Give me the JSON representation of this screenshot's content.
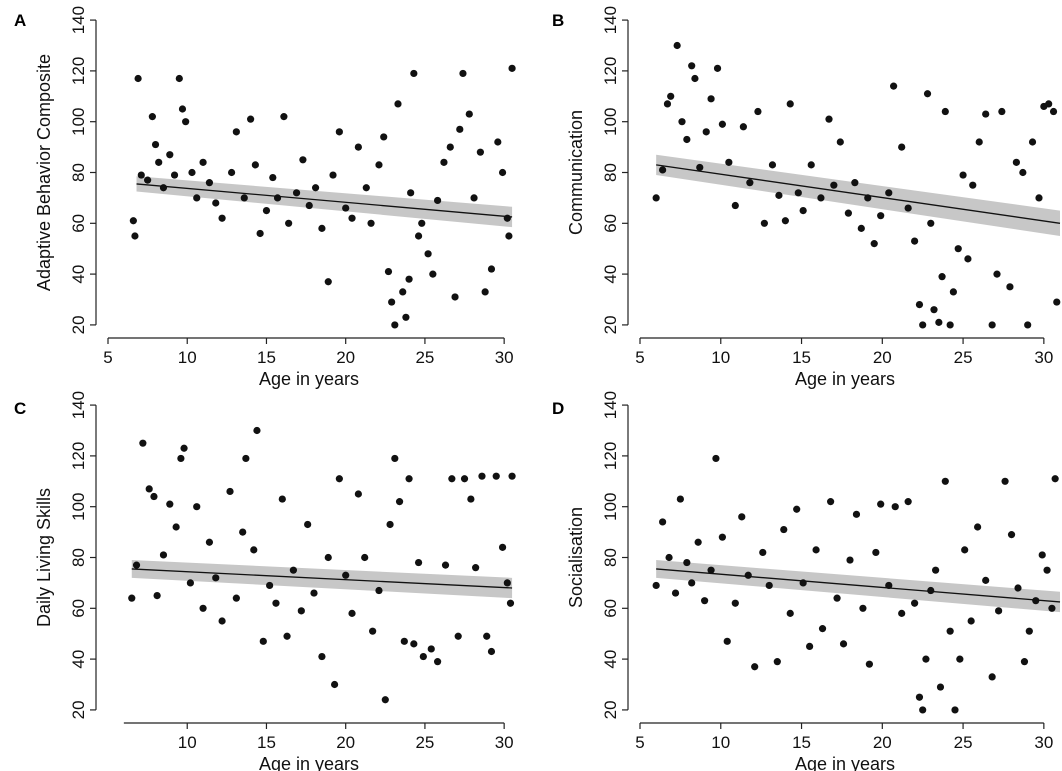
{
  "chart_data": [
    {
      "type": "scatter",
      "panel_letter": "A",
      "xlabel": "Age in years",
      "ylabel": "Adaptive Behavior Composite",
      "xlim": [
        5,
        31
      ],
      "ylim": [
        18,
        142
      ],
      "x_ticks": [
        5,
        10,
        15,
        20,
        25,
        30
      ],
      "y_ticks": [
        20,
        40,
        60,
        80,
        100,
        120,
        140
      ],
      "fit": {
        "x": [
          6.8,
          30.5
        ],
        "y": [
          75.5,
          62.5
        ],
        "ci_halfwidth_start": 3,
        "ci_halfwidth_end": 4
      },
      "points": [
        [
          6.9,
          117
        ],
        [
          7.1,
          79
        ],
        [
          6.7,
          55
        ],
        [
          6.6,
          61
        ],
        [
          7.5,
          77
        ],
        [
          7.8,
          102
        ],
        [
          8,
          91
        ],
        [
          8.2,
          84
        ],
        [
          8.5,
          74
        ],
        [
          8.9,
          87
        ],
        [
          9.2,
          79
        ],
        [
          9.5,
          117
        ],
        [
          9.7,
          105
        ],
        [
          9.9,
          100
        ],
        [
          10.3,
          80
        ],
        [
          10.6,
          70
        ],
        [
          11,
          84
        ],
        [
          11.4,
          76
        ],
        [
          11.8,
          68
        ],
        [
          12.2,
          62
        ],
        [
          12.8,
          80
        ],
        [
          13.1,
          96
        ],
        [
          13.6,
          70
        ],
        [
          14,
          101
        ],
        [
          14.3,
          83
        ],
        [
          14.6,
          56
        ],
        [
          15,
          65
        ],
        [
          15.4,
          78
        ],
        [
          15.7,
          70
        ],
        [
          16.1,
          102
        ],
        [
          16.4,
          60
        ],
        [
          16.9,
          72
        ],
        [
          17.3,
          85
        ],
        [
          17.7,
          67
        ],
        [
          18.1,
          74
        ],
        [
          18.5,
          58
        ],
        [
          18.9,
          37
        ],
        [
          19.2,
          79
        ],
        [
          19.6,
          96
        ],
        [
          20,
          66
        ],
        [
          20.4,
          62
        ],
        [
          20.8,
          90
        ],
        [
          21.3,
          74
        ],
        [
          21.6,
          60
        ],
        [
          22.1,
          83
        ],
        [
          22.4,
          94
        ],
        [
          22.7,
          41
        ],
        [
          22.9,
          29
        ],
        [
          23.1,
          20
        ],
        [
          23.3,
          107
        ],
        [
          23.6,
          33
        ],
        [
          23.8,
          23
        ],
        [
          24,
          38
        ],
        [
          24.1,
          72
        ],
        [
          24.3,
          119
        ],
        [
          24.6,
          55
        ],
        [
          24.8,
          60
        ],
        [
          25.2,
          48
        ],
        [
          25.5,
          40
        ],
        [
          25.8,
          69
        ],
        [
          26.2,
          84
        ],
        [
          26.6,
          90
        ],
        [
          26.9,
          31
        ],
        [
          27.2,
          97
        ],
        [
          27.4,
          119
        ],
        [
          27.8,
          103
        ],
        [
          28.1,
          70
        ],
        [
          28.5,
          88
        ],
        [
          28.8,
          33
        ],
        [
          29.2,
          42
        ],
        [
          29.6,
          92
        ],
        [
          29.9,
          80
        ],
        [
          30.2,
          62
        ],
        [
          30.3,
          55
        ],
        [
          30.5,
          121
        ]
      ]
    },
    {
      "type": "scatter",
      "panel_letter": "B",
      "xlabel": "Age in years",
      "ylabel": "Communication",
      "xlim": [
        5,
        31
      ],
      "ylim": [
        18,
        142
      ],
      "x_ticks": [
        5,
        10,
        15,
        20,
        25,
        30
      ],
      "y_ticks": [
        20,
        40,
        60,
        80,
        100,
        120,
        140
      ],
      "fit": {
        "x": [
          6,
          31
        ],
        "y": [
          83,
          60
        ],
        "ci_halfwidth_start": 4,
        "ci_halfwidth_end": 5
      },
      "points": [
        [
          6,
          70
        ],
        [
          6.4,
          81
        ],
        [
          6.7,
          107
        ],
        [
          6.9,
          110
        ],
        [
          7.3,
          130
        ],
        [
          7.6,
          100
        ],
        [
          7.9,
          93
        ],
        [
          8.2,
          122
        ],
        [
          8.4,
          117
        ],
        [
          8.7,
          82
        ],
        [
          9.1,
          96
        ],
        [
          9.4,
          109
        ],
        [
          9.8,
          121
        ],
        [
          10.1,
          99
        ],
        [
          10.5,
          84
        ],
        [
          10.9,
          67
        ],
        [
          11.4,
          98
        ],
        [
          11.8,
          76
        ],
        [
          12.3,
          104
        ],
        [
          12.7,
          60
        ],
        [
          13.2,
          83
        ],
        [
          13.6,
          71
        ],
        [
          14,
          61
        ],
        [
          14.3,
          107
        ],
        [
          14.8,
          72
        ],
        [
          15.1,
          65
        ],
        [
          15.6,
          83
        ],
        [
          16.2,
          70
        ],
        [
          16.7,
          101
        ],
        [
          17,
          75
        ],
        [
          17.4,
          92
        ],
        [
          17.9,
          64
        ],
        [
          18.3,
          76
        ],
        [
          18.7,
          58
        ],
        [
          19.1,
          70
        ],
        [
          19.5,
          52
        ],
        [
          19.9,
          63
        ],
        [
          20.4,
          72
        ],
        [
          20.7,
          114
        ],
        [
          21.2,
          90
        ],
        [
          21.6,
          66
        ],
        [
          22,
          53
        ],
        [
          22.3,
          28
        ],
        [
          22.5,
          20
        ],
        [
          22.8,
          111
        ],
        [
          23,
          60
        ],
        [
          23.2,
          26
        ],
        [
          23.5,
          21
        ],
        [
          23.7,
          39
        ],
        [
          23.9,
          104
        ],
        [
          24.2,
          20
        ],
        [
          24.4,
          33
        ],
        [
          24.7,
          50
        ],
        [
          25,
          79
        ],
        [
          25.3,
          46
        ],
        [
          25.6,
          75
        ],
        [
          26,
          92
        ],
        [
          26.4,
          103
        ],
        [
          26.8,
          20
        ],
        [
          27.1,
          40
        ],
        [
          27.4,
          104
        ],
        [
          27.9,
          35
        ],
        [
          28.3,
          84
        ],
        [
          28.7,
          80
        ],
        [
          29,
          20
        ],
        [
          29.3,
          92
        ],
        [
          29.7,
          70
        ],
        [
          30,
          106
        ],
        [
          30.3,
          107
        ],
        [
          30.6,
          104
        ],
        [
          30.8,
          29
        ]
      ]
    },
    {
      "type": "scatter",
      "panel_letter": "C",
      "xlabel": "Age in years",
      "ylabel": "Daily Living Skills",
      "xlim": [
        5,
        31
      ],
      "ylim": [
        18,
        142
      ],
      "x_ticks": [
        10,
        15,
        20,
        25,
        30
      ],
      "y_ticks": [
        20,
        40,
        60,
        80,
        100,
        120,
        140
      ],
      "fit": {
        "x": [
          6.5,
          30.5
        ],
        "y": [
          75.5,
          68
        ],
        "ci_halfwidth_start": 3.5,
        "ci_halfwidth_end": 4
      },
      "points": [
        [
          6.5,
          64
        ],
        [
          6.8,
          77
        ],
        [
          7.2,
          125
        ],
        [
          7.6,
          107
        ],
        [
          7.9,
          104
        ],
        [
          8.1,
          65
        ],
        [
          8.5,
          81
        ],
        [
          8.9,
          101
        ],
        [
          9.3,
          92
        ],
        [
          9.6,
          119
        ],
        [
          9.8,
          123
        ],
        [
          10.2,
          70
        ],
        [
          10.6,
          100
        ],
        [
          11,
          60
        ],
        [
          11.4,
          86
        ],
        [
          11.8,
          72
        ],
        [
          12.2,
          55
        ],
        [
          12.7,
          106
        ],
        [
          13.1,
          64
        ],
        [
          13.5,
          90
        ],
        [
          13.7,
          119
        ],
        [
          14.2,
          83
        ],
        [
          14.4,
          130
        ],
        [
          14.8,
          47
        ],
        [
          15.2,
          69
        ],
        [
          15.6,
          62
        ],
        [
          16,
          103
        ],
        [
          16.3,
          49
        ],
        [
          16.7,
          75
        ],
        [
          17.2,
          59
        ],
        [
          17.6,
          93
        ],
        [
          18,
          66
        ],
        [
          18.5,
          41
        ],
        [
          18.9,
          80
        ],
        [
          19.3,
          30
        ],
        [
          19.6,
          111
        ],
        [
          20,
          73
        ],
        [
          20.4,
          58
        ],
        [
          20.8,
          105
        ],
        [
          21.2,
          80
        ],
        [
          21.7,
          51
        ],
        [
          22.1,
          67
        ],
        [
          22.5,
          24
        ],
        [
          22.8,
          93
        ],
        [
          23.1,
          119
        ],
        [
          23.4,
          102
        ],
        [
          23.7,
          47
        ],
        [
          24,
          111
        ],
        [
          24.3,
          46
        ],
        [
          24.6,
          78
        ],
        [
          24.9,
          41
        ],
        [
          25.4,
          44
        ],
        [
          25.8,
          39
        ],
        [
          26.3,
          77
        ],
        [
          26.7,
          111
        ],
        [
          27.1,
          49
        ],
        [
          27.5,
          111
        ],
        [
          27.9,
          103
        ],
        [
          28.2,
          76
        ],
        [
          28.6,
          112
        ],
        [
          28.9,
          49
        ],
        [
          29.2,
          43
        ],
        [
          29.5,
          112
        ],
        [
          29.9,
          84
        ],
        [
          30.2,
          70
        ],
        [
          30.5,
          112
        ],
        [
          30.4,
          62
        ]
      ]
    },
    {
      "type": "scatter",
      "panel_letter": "D",
      "xlabel": "Age in years",
      "ylabel": "Socialisation",
      "xlim": [
        5,
        31
      ],
      "ylim": [
        18,
        142
      ],
      "x_ticks": [
        5,
        10,
        15,
        20,
        25,
        30
      ],
      "y_ticks": [
        20,
        40,
        60,
        80,
        100,
        120,
        140
      ],
      "fit": {
        "x": [
          6,
          31
        ],
        "y": [
          75.5,
          62.5
        ],
        "ci_halfwidth_start": 3.5,
        "ci_halfwidth_end": 4
      },
      "points": [
        [
          6,
          69
        ],
        [
          6.4,
          94
        ],
        [
          6.8,
          80
        ],
        [
          7.2,
          66
        ],
        [
          7.5,
          103
        ],
        [
          7.9,
          78
        ],
        [
          8.2,
          70
        ],
        [
          8.6,
          86
        ],
        [
          9,
          63
        ],
        [
          9.4,
          75
        ],
        [
          9.7,
          119
        ],
        [
          10.1,
          88
        ],
        [
          10.4,
          47
        ],
        [
          10.9,
          62
        ],
        [
          11.3,
          96
        ],
        [
          11.7,
          73
        ],
        [
          12.1,
          37
        ],
        [
          12.6,
          82
        ],
        [
          13,
          69
        ],
        [
          13.5,
          39
        ],
        [
          13.9,
          91
        ],
        [
          14.3,
          58
        ],
        [
          14.7,
          99
        ],
        [
          15.1,
          70
        ],
        [
          15.5,
          45
        ],
        [
          15.9,
          83
        ],
        [
          16.3,
          52
        ],
        [
          16.8,
          102
        ],
        [
          17.2,
          64
        ],
        [
          17.6,
          46
        ],
        [
          18,
          79
        ],
        [
          18.4,
          97
        ],
        [
          18.8,
          60
        ],
        [
          19.2,
          38
        ],
        [
          19.6,
          82
        ],
        [
          19.9,
          101
        ],
        [
          20.4,
          69
        ],
        [
          20.8,
          100
        ],
        [
          21.2,
          58
        ],
        [
          21.6,
          102
        ],
        [
          22,
          62
        ],
        [
          22.3,
          25
        ],
        [
          22.5,
          20
        ],
        [
          22.7,
          40
        ],
        [
          23,
          67
        ],
        [
          23.3,
          75
        ],
        [
          23.6,
          29
        ],
        [
          23.9,
          110
        ],
        [
          24.2,
          51
        ],
        [
          24.5,
          20
        ],
        [
          24.8,
          40
        ],
        [
          25.1,
          83
        ],
        [
          25.5,
          55
        ],
        [
          25.9,
          92
        ],
        [
          26.4,
          71
        ],
        [
          26.8,
          33
        ],
        [
          27.2,
          59
        ],
        [
          27.6,
          110
        ],
        [
          28,
          89
        ],
        [
          28.4,
          68
        ],
        [
          28.8,
          39
        ],
        [
          29.1,
          51
        ],
        [
          29.5,
          63
        ],
        [
          29.9,
          81
        ],
        [
          30.2,
          75
        ],
        [
          30.5,
          60
        ],
        [
          30.7,
          111
        ]
      ]
    }
  ]
}
